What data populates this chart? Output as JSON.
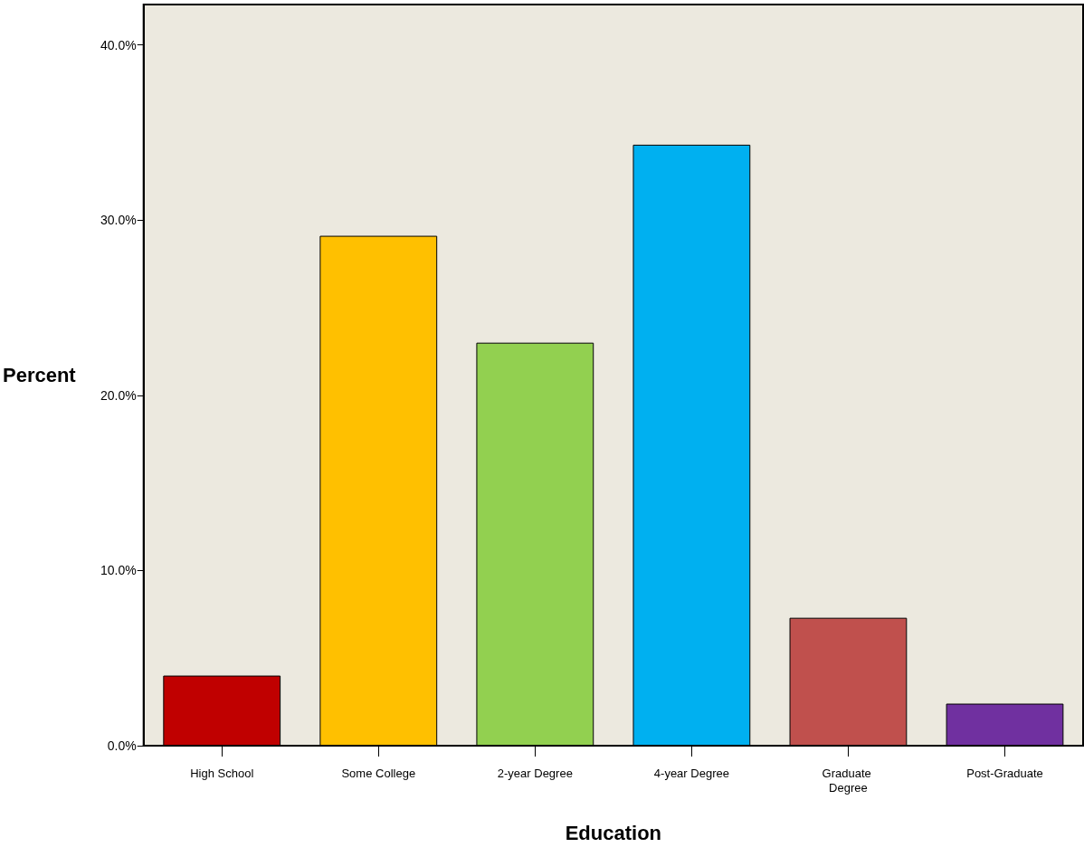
{
  "chart_data": {
    "type": "bar",
    "xlabel": "Education",
    "ylabel": "Percent",
    "categories": [
      "High School",
      "Some College",
      "2-year Degree",
      "4-year Degree",
      "Graduate Degree",
      "Post-Graduate"
    ],
    "values": [
      4.0,
      29.1,
      23.0,
      34.3,
      7.3,
      2.4
    ],
    "colors": [
      "#c00000",
      "#ffc000",
      "#92d050",
      "#00b0f0",
      "#c0504d",
      "#7030a0"
    ],
    "ylim": [
      0,
      42.3
    ],
    "yticks": [
      {
        "value": 0,
        "label": "0.0%"
      },
      {
        "value": 10,
        "label": "10.0%"
      },
      {
        "value": 20,
        "label": "20.0%"
      },
      {
        "value": 30,
        "label": "30.0%"
      },
      {
        "value": 40,
        "label": "40.0%"
      }
    ],
    "grid": false
  }
}
